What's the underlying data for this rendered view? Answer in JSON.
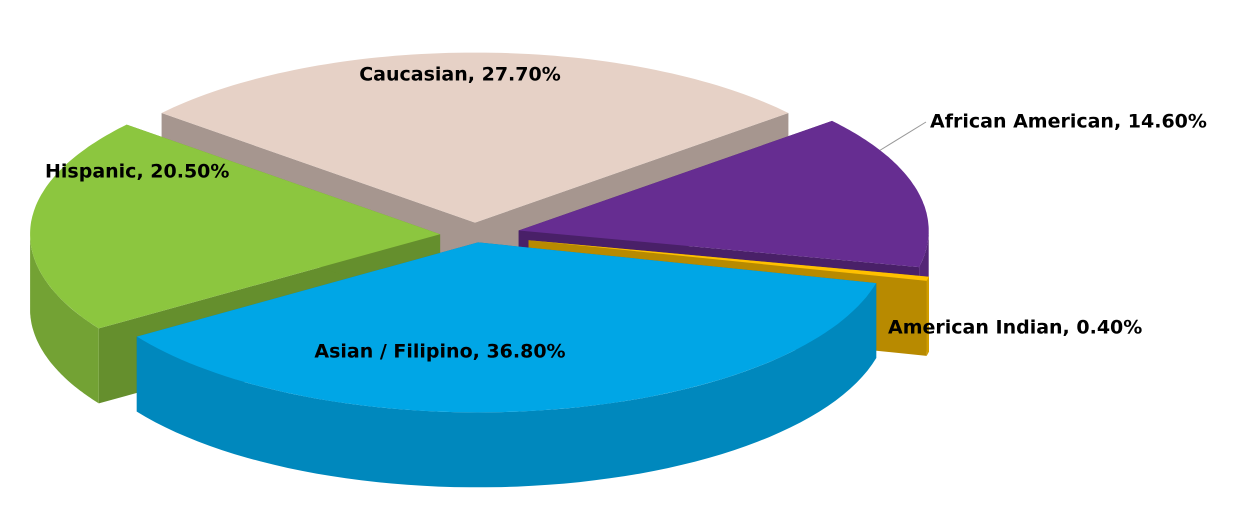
{
  "chart_data": {
    "type": "pie",
    "values": [
      27.7,
      14.6,
      0.4,
      36.8,
      20.5
    ],
    "value_labels": [
      "Caucasian, 27.70%",
      "African American, 14.60%",
      "American Indian, 0.40%",
      "Asian / Filipino, 36.80%",
      "Hispanic, 20.50%"
    ],
    "colors": [
      "#e6d1c6",
      "#662d91",
      "#ffc000",
      "#00a6e6",
      "#8cc63f"
    ]
  }
}
